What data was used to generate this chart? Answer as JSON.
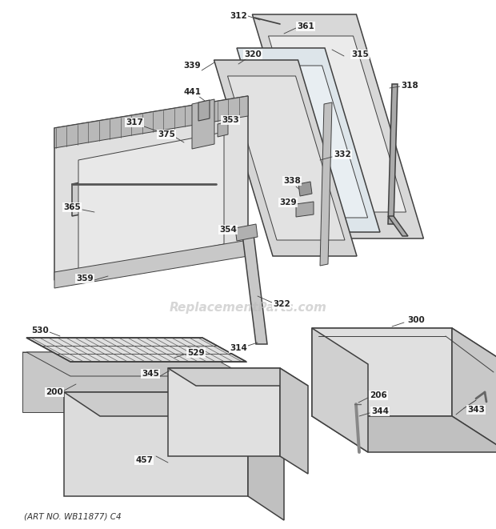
{
  "watermark": "ReplacementParts.com",
  "art_no": "(ART NO. WB11877) C4",
  "bg_color": "#ffffff",
  "line_color": "#404040",
  "lw_main": 1.1,
  "lw_thin": 0.7,
  "lw_thick": 1.8
}
